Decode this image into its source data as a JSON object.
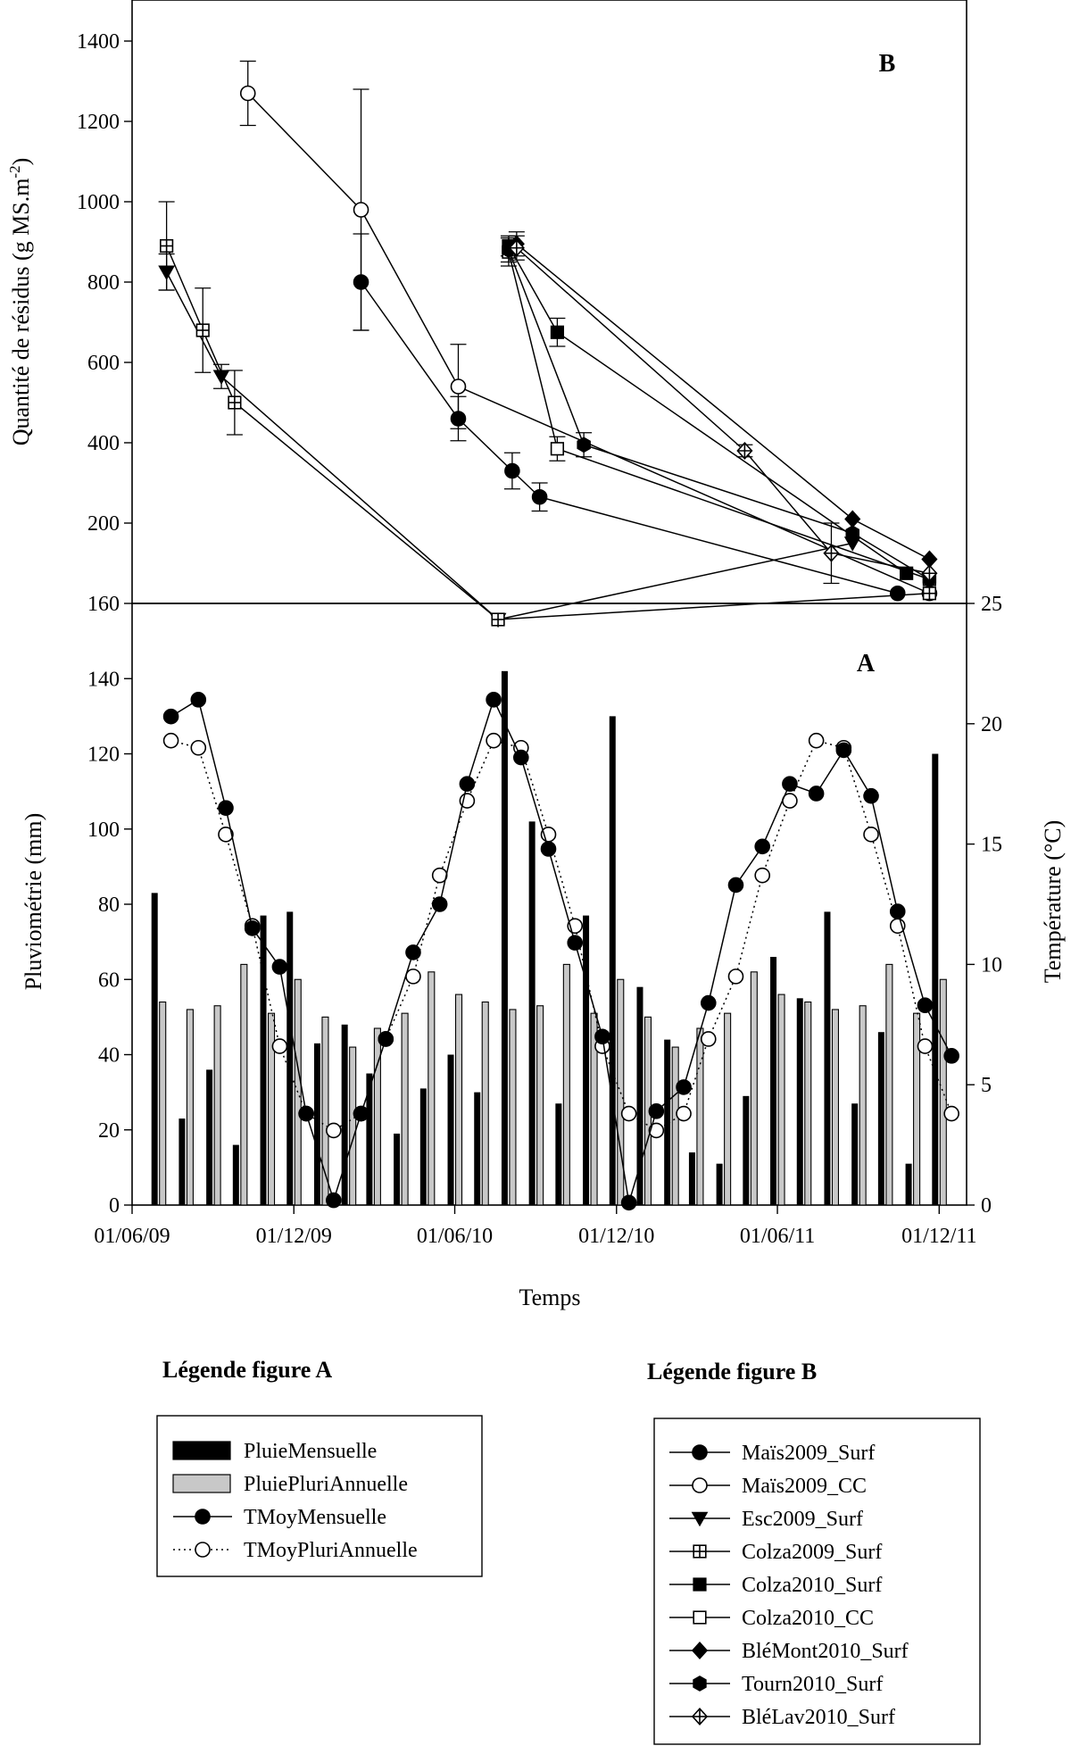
{
  "chart_data": [
    {
      "type": "line",
      "panel_letter": "B",
      "title": "",
      "xlabel": "",
      "ylabel": "Quantité de résidus (g MS.m-2)",
      "ylabel_main": "Quantité de résidus (g MS.m",
      "ylabel_sup": "-2",
      "ylabel_end": ")",
      "ylim": [
        160,
        1400
      ],
      "yticks": [
        160,
        200,
        400,
        600,
        800,
        1000,
        1200,
        1400
      ],
      "xlim": [
        "2009-06-01",
        "2012-01-01"
      ],
      "legend_title": "Légende figure B",
      "legend_position": "bottom-right",
      "series": [
        {
          "name": "Maïs2009_Surf",
          "marker": "circle-filled",
          "points": [
            [
              "2010-02-15",
              800,
              120
            ],
            [
              "2010-06-05",
              460,
              55
            ],
            [
              "2010-08-05",
              330,
              45
            ],
            [
              "2010-09-05",
              265,
              35
            ],
            [
              "2011-10-15",
              165,
              0
            ]
          ]
        },
        {
          "name": "Maïs2009_CC",
          "marker": "circle-open",
          "points": [
            [
              "2009-10-10",
              1270,
              80
            ],
            [
              "2010-02-15",
              980,
              300
            ],
            [
              "2010-06-05",
              540,
              105
            ],
            [
              "2011-11-20",
              165,
              0
            ]
          ]
        },
        {
          "name": "Esc2009_Surf",
          "marker": "triangle-down-filled",
          "points": [
            [
              "2009-07-10",
              825,
              45
            ],
            [
              "2009-09-10",
              565,
              30
            ],
            [
              "2010-07-20",
              152,
              0
            ],
            [
              "2011-08-25",
              190,
              0
            ]
          ]
        },
        {
          "name": "Colza2009_Surf",
          "marker": "square-cross",
          "points": [
            [
              "2009-07-10",
              890,
              110
            ],
            [
              "2009-08-20",
              680,
              105
            ],
            [
              "2009-09-25",
              500,
              80
            ],
            [
              "2010-07-20",
              152,
              0
            ],
            [
              "2011-11-20",
              165,
              0
            ]
          ]
        },
        {
          "name": "Colza2010_Surf",
          "marker": "square-filled",
          "points": [
            [
              "2010-08-01",
              890,
              25
            ],
            [
              "2010-09-25",
              675,
              35
            ],
            [
              "2011-10-25",
              175,
              0
            ]
          ]
        },
        {
          "name": "Colza2010_CC",
          "marker": "square-open",
          "points": [
            [
              "2010-08-01",
              875,
              35
            ],
            [
              "2010-09-25",
              385,
              30
            ],
            [
              "2011-11-20",
              172,
              0
            ]
          ]
        },
        {
          "name": "BléMont2010_Surf",
          "marker": "diamond-filled",
          "points": [
            [
              "2010-08-10",
              895,
              30
            ],
            [
              "2011-08-25",
              210,
              0
            ],
            [
              "2011-11-20",
              182,
              0
            ]
          ]
        },
        {
          "name": "Tourn2010_Surf",
          "marker": "hexagon-filled",
          "points": [
            [
              "2010-08-01",
              880,
              30
            ],
            [
              "2010-10-25",
              395,
              30
            ],
            [
              "2011-08-25",
              195,
              0
            ],
            [
              "2011-11-20",
              172,
              0
            ]
          ]
        },
        {
          "name": "BléLav2010_Surf",
          "marker": "diamond-cross",
          "points": [
            [
              "2010-08-10",
              885,
              30
            ],
            [
              "2011-04-25",
              380,
              15
            ],
            [
              "2011-08-01",
              185,
              15
            ],
            [
              "2011-11-20",
              175,
              0
            ]
          ]
        }
      ]
    },
    {
      "type": "bar+line",
      "panel_letter": "A",
      "title": "",
      "xlabel": "Temps",
      "ylabel_left": "Pluviométrie (mm)",
      "ylabel_right": "Température (°C)",
      "ylim_left": [
        0,
        160
      ],
      "yticks_left": [
        0,
        20,
        40,
        60,
        80,
        100,
        120,
        140
      ],
      "ylim_right": [
        0,
        25
      ],
      "yticks_right": [
        0,
        5,
        10,
        15,
        20,
        25
      ],
      "xlim": [
        "2009-06-01",
        "2012-01-01"
      ],
      "xticks": [
        "2009-06-01",
        "2009-12-01",
        "2010-06-01",
        "2010-12-01",
        "2011-06-01",
        "2011-12-01"
      ],
      "xtick_labels": [
        "01/06/09",
        "01/12/09",
        "01/06/10",
        "01/12/10",
        "01/06/11",
        "01/12/11"
      ],
      "legend_title": "Légende figure A",
      "legend_position": "bottom-left",
      "months": [
        "2009-07",
        "2009-08",
        "2009-09",
        "2009-10",
        "2009-11",
        "2009-12",
        "2010-01",
        "2010-02",
        "2010-03",
        "2010-04",
        "2010-05",
        "2010-06",
        "2010-07",
        "2010-08",
        "2010-09",
        "2010-10",
        "2010-11",
        "2010-12",
        "2011-01",
        "2011-02",
        "2011-03",
        "2011-04",
        "2011-05",
        "2011-06",
        "2011-07",
        "2011-08",
        "2011-09",
        "2011-10",
        "2011-11",
        "2011-12"
      ],
      "series": [
        {
          "name": "PluieMensuelle",
          "kind": "bar",
          "axis": "left",
          "values": [
            83,
            23,
            36,
            16,
            77,
            78,
            43,
            48,
            35,
            19,
            31,
            40,
            30,
            142,
            102,
            27,
            77,
            130,
            58,
            44,
            14,
            11,
            29,
            66,
            55,
            78,
            27,
            46,
            11,
            120
          ]
        },
        {
          "name": "PluiePluriAnnuelle",
          "kind": "bar",
          "axis": "left",
          "values": [
            54,
            52,
            53,
            64,
            51,
            60,
            50,
            42,
            47,
            51,
            62,
            56,
            54,
            52,
            53,
            64,
            51,
            60,
            50,
            42,
            47,
            51,
            62,
            56,
            54,
            52,
            53,
            64,
            51,
            60
          ]
        },
        {
          "name": "TMoyMensuelle",
          "kind": "line",
          "axis": "right",
          "values": [
            20.3,
            21.0,
            16.5,
            11.5,
            9.9,
            3.8,
            0.2,
            3.8,
            6.9,
            10.5,
            12.5,
            17.5,
            21.0,
            18.6,
            14.8,
            10.9,
            7.0,
            0.1,
            3.9,
            4.9,
            8.4,
            13.3,
            14.9,
            17.5,
            17.1,
            18.9,
            17.0,
            12.2,
            8.3,
            6.2
          ]
        },
        {
          "name": "TMoyPluriAnnuelle",
          "kind": "line",
          "axis": "right",
          "values": [
            19.3,
            19.0,
            15.4,
            11.6,
            6.6,
            3.8,
            3.1,
            3.8,
            6.9,
            9.5,
            13.7,
            16.8,
            19.3,
            19.0,
            15.4,
            11.6,
            6.6,
            3.8,
            3.1,
            3.8,
            6.9,
            9.5,
            13.7,
            16.8,
            19.3,
            19.0,
            15.4,
            11.6,
            6.6,
            3.8
          ]
        }
      ]
    }
  ]
}
